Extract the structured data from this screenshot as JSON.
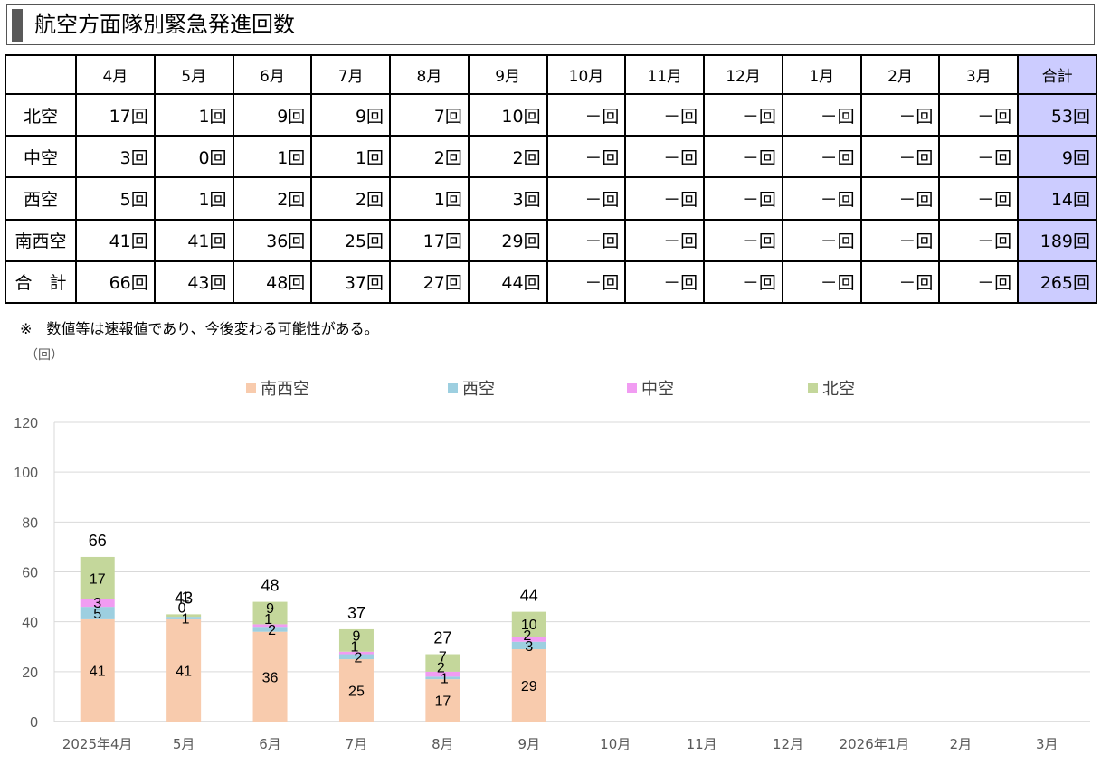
{
  "title": "航空方面隊別緊急発進回数",
  "table": {
    "columns": [
      "",
      "4月",
      "5月",
      "6月",
      "7月",
      "8月",
      "9月",
      "10月",
      "11月",
      "12月",
      "1月",
      "2月",
      "3月",
      "合計"
    ],
    "rows": [
      {
        "label": "北空",
        "cells": [
          "17回",
          "1回",
          "9回",
          "9回",
          "7回",
          "10回",
          "－回",
          "－回",
          "－回",
          "－回",
          "－回",
          "－回",
          "53回"
        ]
      },
      {
        "label": "中空",
        "cells": [
          "3回",
          "0回",
          "1回",
          "1回",
          "2回",
          "2回",
          "－回",
          "－回",
          "－回",
          "－回",
          "－回",
          "－回",
          "9回"
        ]
      },
      {
        "label": "西空",
        "cells": [
          "5回",
          "1回",
          "2回",
          "2回",
          "1回",
          "3回",
          "－回",
          "－回",
          "－回",
          "－回",
          "－回",
          "－回",
          "14回"
        ]
      },
      {
        "label": "南西空",
        "cells": [
          "41回",
          "41回",
          "36回",
          "25回",
          "17回",
          "29回",
          "－回",
          "－回",
          "－回",
          "－回",
          "－回",
          "－回",
          "189回"
        ]
      },
      {
        "label": "合　計",
        "cells": [
          "66回",
          "43回",
          "48回",
          "37回",
          "27回",
          "44回",
          "－回",
          "－回",
          "－回",
          "－回",
          "－回",
          "－回",
          "265回"
        ]
      }
    ]
  },
  "note": "※　数値等は速報値であり、今後変わる可能性がある。",
  "unit_label": "（回）",
  "chart_data": {
    "type": "bar",
    "stacked": true,
    "categories": [
      "2025年4月",
      "5月",
      "6月",
      "7月",
      "8月",
      "9月",
      "10月",
      "11月",
      "12月",
      "2026年1月",
      "2月",
      "3月"
    ],
    "series": [
      {
        "name": "南西空",
        "color": "#f8cbad",
        "values": [
          41,
          41,
          36,
          25,
          17,
          29,
          null,
          null,
          null,
          null,
          null,
          null
        ]
      },
      {
        "name": "西空",
        "color": "#9dcfe0",
        "values": [
          5,
          1,
          2,
          2,
          1,
          3,
          null,
          null,
          null,
          null,
          null,
          null
        ]
      },
      {
        "name": "中空",
        "color": "#f19cf2",
        "values": [
          3,
          0,
          1,
          1,
          2,
          2,
          null,
          null,
          null,
          null,
          null,
          null
        ]
      },
      {
        "name": "北空",
        "color": "#c4d79b",
        "values": [
          17,
          1,
          9,
          9,
          7,
          10,
          null,
          null,
          null,
          null,
          null,
          null
        ]
      }
    ],
    "totals": [
      66,
      43,
      48,
      37,
      27,
      44,
      null,
      null,
      null,
      null,
      null,
      null
    ],
    "ylim": [
      0,
      120
    ],
    "yticks": [
      0,
      20,
      40,
      60,
      80,
      100,
      120
    ],
    "grid": true,
    "legend_position": "top"
  }
}
